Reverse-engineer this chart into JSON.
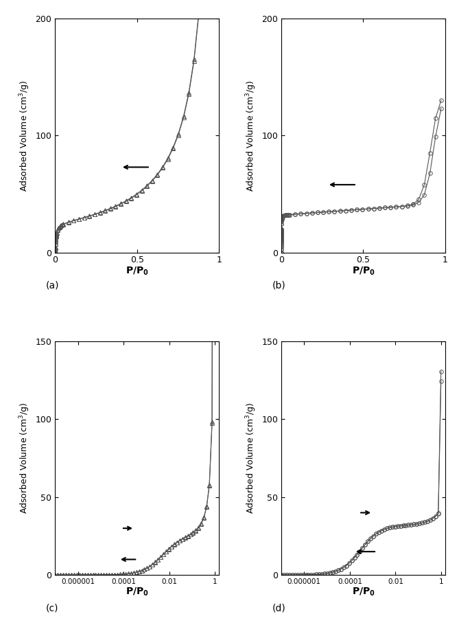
{
  "subfig_labels": [
    "(a)",
    "(b)",
    "(c)",
    "(d)"
  ],
  "ylabel": "Adsorbed Volume (cm$^3$/g)",
  "marker_s1": "^",
  "marker_s2": "o",
  "marker_size": 4,
  "marker_facecolor": "none",
  "marker_edgecolor": "#555555",
  "line_color": "#555555",
  "line_width": 0.8,
  "linear_ylim": [
    0,
    200
  ],
  "log_ylim": [
    0,
    150
  ],
  "linear_yticks": [
    0,
    100,
    200
  ],
  "log_yticks": [
    0,
    50,
    100,
    150
  ],
  "linear_xticks": [
    0,
    0.5,
    1
  ],
  "log_xticks": [
    1e-06,
    0.0001,
    0.01,
    1
  ],
  "log_xticklabels": [
    "0.000001",
    "0.0001",
    "0.01",
    "1"
  ]
}
